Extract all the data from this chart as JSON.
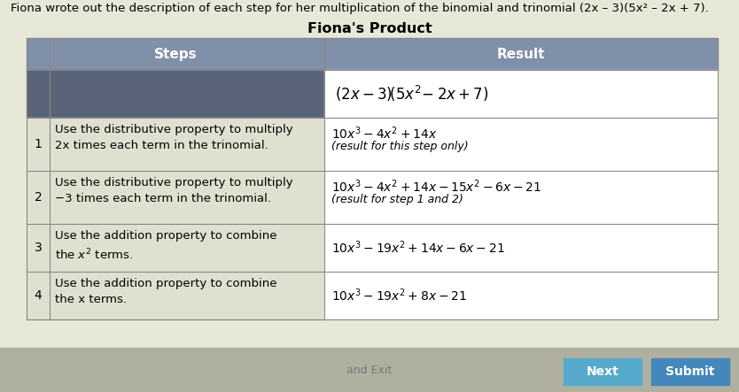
{
  "title_text": "Fiona wrote out the description of each step for her multiplication of the binomial and trinomial (2x – 3)(5x² – 2x + 7).",
  "table_title": "Fiona's Product",
  "header_steps": "Steps",
  "header_result": "Result",
  "page_bg": "#c8c8b8",
  "content_bg": "#e8e8d8",
  "header_bg": "#8090a8",
  "dark_row_bg": "#5a6478",
  "light_row_bg": "#e0e0d0",
  "white": "#ffffff",
  "grid_color": "#888888",
  "button_color": "#4488bb",
  "button_color2": "#55aacc"
}
